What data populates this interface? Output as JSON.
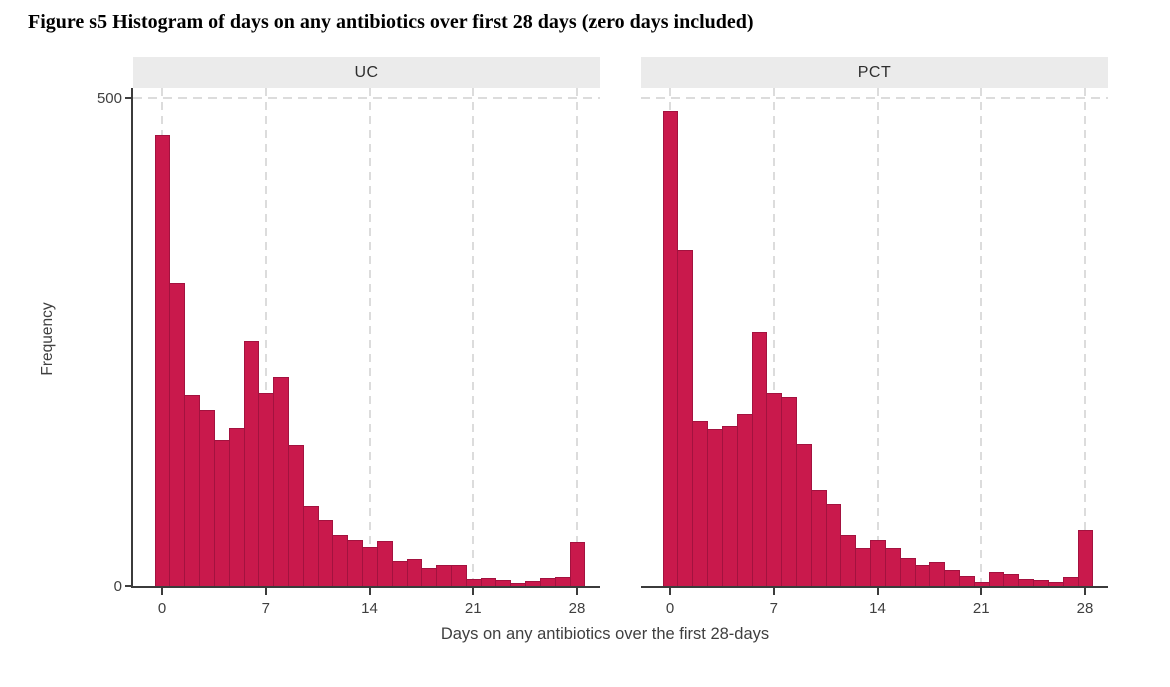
{
  "title": "Figure s5 Histogram of days on any antibiotics over first 28 days (zero days included)",
  "chart_data": {
    "type": "bar",
    "subtype": "faceted-histogram",
    "facets_note": "two side-by-side panels sharing one y axis",
    "xlabel": "Days on any antibiotics over the first 28-days",
    "ylabel": "Frequency",
    "x_ticks": [
      0,
      7,
      14,
      21,
      28
    ],
    "y_ticks": [
      500,
      0
    ],
    "y_tick_labels": [
      "500",
      "0"
    ],
    "ylim": [
      0,
      510
    ],
    "bin_width_days": 1,
    "days": [
      0,
      1,
      2,
      3,
      4,
      5,
      6,
      7,
      8,
      9,
      10,
      11,
      12,
      13,
      14,
      15,
      16,
      17,
      18,
      19,
      20,
      21,
      22,
      23,
      24,
      25,
      26,
      27,
      28
    ],
    "panels": [
      {
        "label": "UC",
        "values": [
          462,
          311,
          196,
          181,
          150,
          163,
          251,
          198,
          215,
          145,
          83,
          68,
          53,
          48,
          41,
          47,
          27,
          29,
          19,
          23,
          23,
          8,
          9,
          7,
          4,
          6,
          9,
          10,
          46
        ]
      },
      {
        "label": "PCT",
        "values": [
          486,
          344,
          170,
          161,
          165,
          177,
          261,
          198,
          194,
          146,
          99,
          85,
          53,
          40,
          48,
          40,
          30,
          22,
          26,
          17,
          11,
          5,
          15,
          13,
          8,
          7,
          5,
          10,
          58
        ]
      }
    ],
    "grid": "dashed light-gray vertical lines at x ticks and horizontal line at y=500",
    "legend_position": "none",
    "colors": {
      "bar_fill": "#c9194c",
      "bar_border": "#a3123f",
      "strip_background": "#ebebeb",
      "gridline": "#dcdcdc",
      "axis_line": "#3b3b3b",
      "axis_text": "#3f3f3f",
      "title_text": "#000000"
    }
  }
}
